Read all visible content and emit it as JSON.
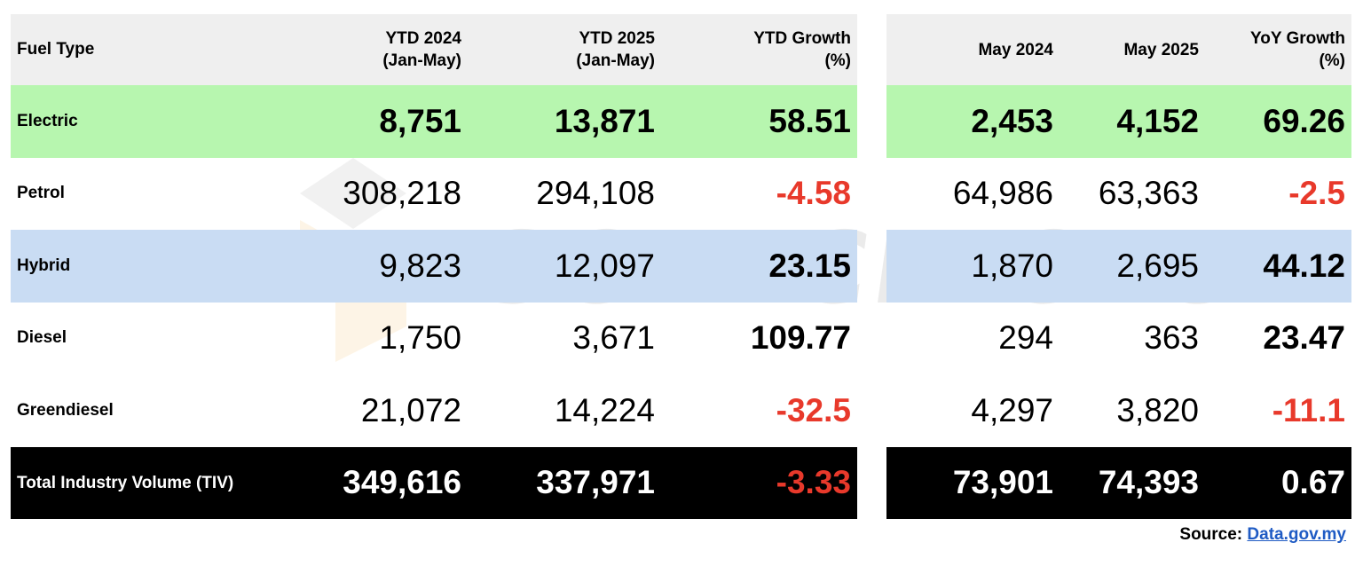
{
  "ytd_table": {
    "headers": [
      "Fuel Type",
      "YTD 2024\n(Jan-May)",
      "YTD 2025\n(Jan-May)",
      "YTD Growth\n(%)"
    ],
    "rows": [
      {
        "label": "Electric",
        "v1": "8,751",
        "v2": "13,871",
        "growth": "58.51"
      },
      {
        "label": "Petrol",
        "v1": "308,218",
        "v2": "294,108",
        "growth": "-4.58"
      },
      {
        "label": "Hybrid",
        "v1": "9,823",
        "v2": "12,097",
        "growth": "23.15"
      },
      {
        "label": "Diesel",
        "v1": "1,750",
        "v2": "3,671",
        "growth": "109.77"
      },
      {
        "label": "Greendiesel",
        "v1": "21,072",
        "v2": "14,224",
        "growth": "-32.5"
      },
      {
        "label": "Total Industry Volume (TIV)",
        "v1": "349,616",
        "v2": "337,971",
        "growth": "-3.33"
      }
    ]
  },
  "month_table": {
    "headers": [
      "May 2024",
      "May 2025",
      "YoY Growth\n(%)"
    ],
    "rows": [
      {
        "v1": "2,453",
        "v2": "4,152",
        "growth": "69.26"
      },
      {
        "v1": "64,986",
        "v2": "63,363",
        "growth": "-2.5"
      },
      {
        "v1": "1,870",
        "v2": "2,695",
        "growth": "44.12"
      },
      {
        "v1": "294",
        "v2": "363",
        "growth": "23.47"
      },
      {
        "v1": "4,297",
        "v2": "3,820",
        "growth": "-11.1"
      },
      {
        "v1": "73,901",
        "v2": "74,393",
        "growth": "0.67"
      }
    ]
  },
  "source": {
    "label": "Source:",
    "link_text": "Data.gov.my"
  },
  "watermark": {
    "text": "SOYACINCAU"
  },
  "colors": {
    "header_bg": "#efefef",
    "electric_bg": "#b7f6af",
    "hybrid_bg": "#c9dcf3",
    "total_bg": "#000000",
    "negative": "#e8392b",
    "link": "#1f5bc4"
  }
}
